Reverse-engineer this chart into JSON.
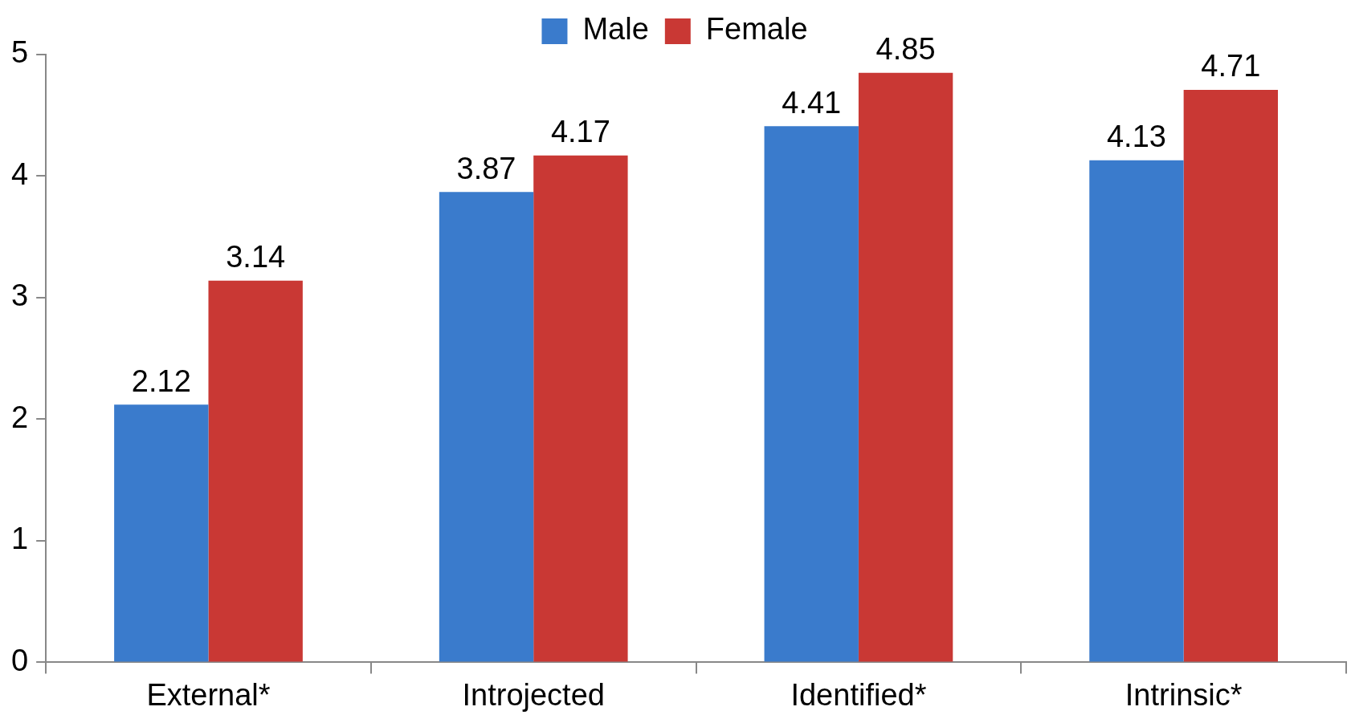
{
  "chart_data": {
    "type": "bar",
    "categories": [
      "External*",
      "Introjected",
      "Identified*",
      "Intrinsic*"
    ],
    "series": [
      {
        "name": "Male",
        "color": "#3a7bcc",
        "values": [
          2.12,
          3.87,
          4.41,
          4.13
        ]
      },
      {
        "name": "Female",
        "color": "#c93834",
        "values": [
          3.14,
          4.17,
          4.85,
          4.71
        ]
      }
    ],
    "ylim": [
      0,
      5
    ],
    "yticks": [
      0,
      1,
      2,
      3,
      4,
      5
    ],
    "grid": false,
    "legend": "top",
    "data_labels": true
  }
}
